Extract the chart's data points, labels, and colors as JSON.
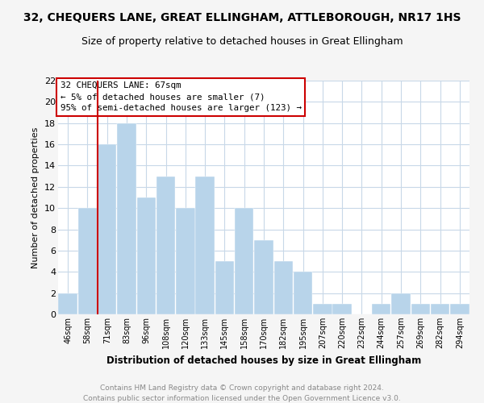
{
  "title": "32, CHEQUERS LANE, GREAT ELLINGHAM, ATTLEBOROUGH, NR17 1HS",
  "subtitle": "Size of property relative to detached houses in Great Ellingham",
  "xlabel": "Distribution of detached houses by size in Great Ellingham",
  "ylabel": "Number of detached properties",
  "footer_line1": "Contains HM Land Registry data © Crown copyright and database right 2024.",
  "footer_line2": "Contains public sector information licensed under the Open Government Licence v3.0.",
  "bar_labels": [
    "46sqm",
    "58sqm",
    "71sqm",
    "83sqm",
    "96sqm",
    "108sqm",
    "120sqm",
    "133sqm",
    "145sqm",
    "158sqm",
    "170sqm",
    "182sqm",
    "195sqm",
    "207sqm",
    "220sqm",
    "232sqm",
    "244sqm",
    "257sqm",
    "269sqm",
    "282sqm",
    "294sqm"
  ],
  "bar_values": [
    2,
    10,
    16,
    18,
    11,
    13,
    10,
    13,
    5,
    10,
    7,
    5,
    4,
    1,
    1,
    0,
    1,
    2,
    1,
    1,
    1
  ],
  "bar_color": "#b8d4ea",
  "bar_edge_color": "#b8d4ea",
  "marker_label": "71sqm",
  "marker_color": "#cc0000",
  "ylim": [
    0,
    22
  ],
  "yticks": [
    0,
    2,
    4,
    6,
    8,
    10,
    12,
    14,
    16,
    18,
    20,
    22
  ],
  "annotation_title": "32 CHEQUERS LANE: 67sqm",
  "annotation_line1": "← 5% of detached houses are smaller (7)",
  "annotation_line2": "95% of semi-detached houses are larger (123) →",
  "bg_color": "#f5f5f5",
  "plot_bg_color": "#ffffff",
  "grid_color": "#c8d8e8",
  "title_fontsize": 10,
  "subtitle_fontsize": 9,
  "footer_color": "#888888"
}
